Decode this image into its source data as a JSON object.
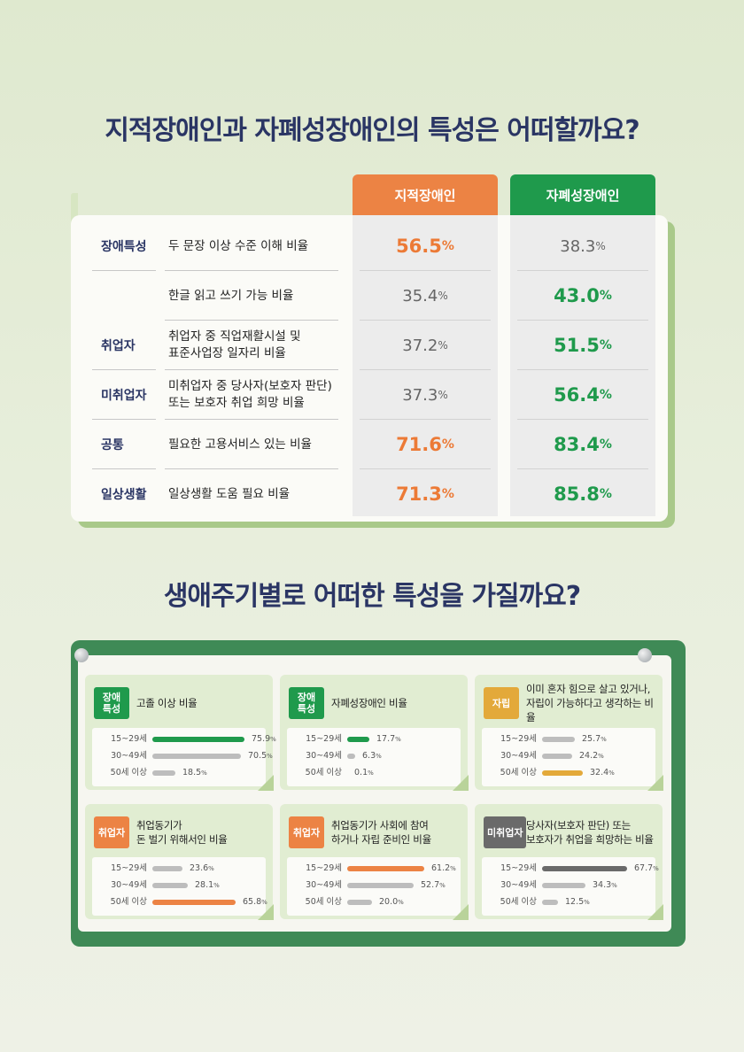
{
  "title1": "지적장애인과 자폐성장애인의 특성은 어떠할까요?",
  "title2": "생애주기별로 어떠한 특성을 가질까요?",
  "table": {
    "col1": "지적장애인",
    "col2": "자폐성장애인",
    "rows": [
      {
        "cat": "장애특성",
        "desc": "두 문장 이상 수준 이해 비율",
        "v1": "56.5",
        "v2": "38.3",
        "hl": "v1"
      },
      {
        "cat": "",
        "desc": "한글 읽고 쓰기 가능 비율",
        "v1": "35.4",
        "v2": "43.0",
        "hl": "v2"
      },
      {
        "cat": "취업자",
        "desc": "취업자 중 직업재활시설 및\n표준사업장 일자리 비율",
        "v1": "37.2",
        "v2": "51.5",
        "hl": "v2"
      },
      {
        "cat": "미취업자",
        "desc": "미취업자 중 당사자(보호자 판단)\n또는 보호자 취업 희망 비율",
        "v1": "37.3",
        "v2": "56.4",
        "hl": "v2"
      },
      {
        "cat": "공통",
        "desc": "필요한 고용서비스 있는 비율",
        "v1": "71.6",
        "v2": "83.4",
        "hl": "both"
      },
      {
        "cat": "일상생활",
        "desc": "일상생활 도움 필요 비율",
        "v1": "71.3",
        "v2": "85.8",
        "hl": "both"
      }
    ],
    "pct": "%"
  },
  "colors": {
    "orange": "#ec8344",
    "green": "#1f9a4c",
    "yellow": "#e3a93a",
    "gray": "#6a6a6a",
    "navy": "#2a3564"
  },
  "panels": [
    {
      "badge": "장애\n특성",
      "badge_color": "green",
      "title": "고졸 이상 비율",
      "hl": 0,
      "rows": [
        {
          "age": "15~29세",
          "value": 75.9
        },
        {
          "age": "30~49세",
          "value": 70.5
        },
        {
          "age": "50세 이상",
          "value": 18.5
        }
      ]
    },
    {
      "badge": "장애\n특성",
      "badge_color": "green",
      "title": "자폐성장애인 비율",
      "hl": 0,
      "rows": [
        {
          "age": "15~29세",
          "value": 17.7
        },
        {
          "age": "30~49세",
          "value": 6.3
        },
        {
          "age": "50세 이상",
          "value": 0.1
        }
      ]
    },
    {
      "badge": "자립",
      "badge_color": "yellow",
      "title": "이미 혼자 힘으로 살고 있거나,\n자립이 가능하다고 생각하는 비율",
      "hl": 2,
      "rows": [
        {
          "age": "15~29세",
          "value": 25.7
        },
        {
          "age": "30~49세",
          "value": 24.2
        },
        {
          "age": "50세 이상",
          "value": 32.4
        }
      ]
    },
    {
      "badge": "취업자",
      "badge_color": "orange",
      "title": "취업동기가\n돈 벌기 위해서인 비율",
      "hl": 2,
      "rows": [
        {
          "age": "15~29세",
          "value": 23.6
        },
        {
          "age": "30~49세",
          "value": 28.1
        },
        {
          "age": "50세 이상",
          "value": 65.8
        }
      ]
    },
    {
      "badge": "취업자",
      "badge_color": "orange",
      "title": "취업동기가 사회에 참여\n하거나 자립 준비인 비율",
      "hl": 0,
      "rows": [
        {
          "age": "15~29세",
          "value": 61.2
        },
        {
          "age": "30~49세",
          "value": 52.7
        },
        {
          "age": "50세 이상",
          "value": 20.0
        }
      ]
    },
    {
      "badge": "미취업자",
      "badge_color": "gray",
      "title": "당사자(보호자 판단) 또는\n보호자가 취업을 희망하는 비율",
      "hl": 0,
      "rows": [
        {
          "age": "15~29세",
          "value": 67.7
        },
        {
          "age": "30~49세",
          "value": 34.3
        },
        {
          "age": "50세 이상",
          "value": 12.5
        }
      ]
    }
  ]
}
